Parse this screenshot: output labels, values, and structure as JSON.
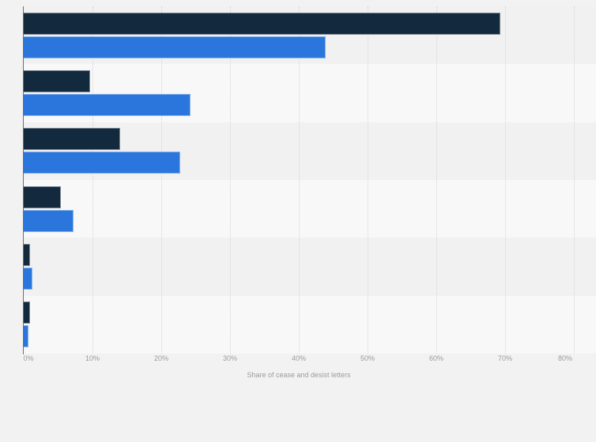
{
  "page": {
    "background": "#f2f2f2"
  },
  "chart_data": {
    "type": "bar",
    "orientation": "horizontal",
    "title": "",
    "xlabel": "Share of cease and desist letters",
    "ylabel": "",
    "xlim": [
      0,
      80
    ],
    "x_tick_labels": [
      "0%",
      "10%",
      "20%",
      "30%",
      "40%",
      "50%",
      "60%",
      "70%",
      "80%"
    ],
    "grid": true,
    "legend": "none",
    "categories": [
      "",
      "",
      "",
      "",
      "",
      ""
    ],
    "series": [
      {
        "name": "dark-navy-series",
        "color": "#13293d",
        "values": [
          69.2,
          9.5,
          13.9,
          5.3,
          0.8,
          0.8
        ]
      },
      {
        "name": "blue-series",
        "color": "#2b76dc",
        "values": [
          43.8,
          24.1,
          22.7,
          7.1,
          1.2,
          0.6
        ]
      }
    ],
    "band_colors": [
      "#f1f1f1",
      "#f8f8f8"
    ],
    "gridline_color": "#d4d4d4",
    "axis_line_color": "#6e6e6e",
    "tick_label_color": "#9b9b9b"
  }
}
